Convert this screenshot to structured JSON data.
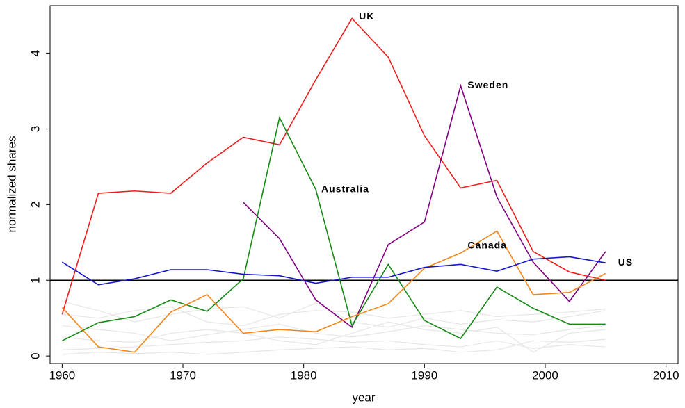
{
  "chart_data": {
    "type": "line",
    "x": [
      1960,
      1963,
      1966,
      1969,
      1972,
      1975,
      1978,
      1981,
      1984,
      1987,
      1990,
      1993,
      1996,
      1999,
      2002,
      2005
    ],
    "series": [
      {
        "color": "#e6e6e6",
        "values": [
          0.72,
          0.6,
          0.45,
          0.55,
          0.62,
          0.65,
          0.5,
          0.7,
          0.45,
          0.38,
          0.5,
          0.42,
          0.48,
          0.45,
          0.52,
          0.6
        ]
      },
      {
        "color": "#e6e6e6",
        "values": [
          0.4,
          0.35,
          0.3,
          0.2,
          0.28,
          0.35,
          0.42,
          0.3,
          0.25,
          0.32,
          0.4,
          0.35,
          0.3,
          0.28,
          0.35,
          0.4
        ]
      },
      {
        "color": "#e6e6e6",
        "values": [
          0.08,
          0.1,
          0.12,
          0.15,
          0.18,
          0.2,
          0.25,
          0.22,
          0.18,
          0.2,
          0.15,
          0.12,
          0.2,
          0.1,
          0.15,
          0.12
        ]
      },
      {
        "color": "#e6e6e6",
        "values": [
          0.55,
          0.5,
          0.6,
          0.65,
          0.45,
          0.4,
          0.55,
          0.6,
          0.58,
          0.5,
          0.55,
          0.6,
          0.52,
          0.55,
          0.58,
          0.62
        ]
      },
      {
        "color": "#e6e6e6",
        "values": [
          0.25,
          0.2,
          0.18,
          0.3,
          0.35,
          0.3,
          0.2,
          0.15,
          0.3,
          0.45,
          0.35,
          0.3,
          0.38,
          0.05,
          0.3,
          0.35
        ]
      },
      {
        "color": "#e6e6e6",
        "values": [
          0.02,
          0.05,
          0.03,
          0.05,
          0.02,
          0.05,
          0.08,
          0.1,
          0.12,
          0.08,
          0.1,
          0.05,
          0.08,
          0.2,
          0.18,
          0.22
        ]
      },
      {
        "name": "UK",
        "color": "#ee1c1c",
        "values": [
          0.55,
          2.15,
          2.18,
          2.15,
          2.55,
          2.89,
          2.79,
          3.65,
          4.46,
          3.95,
          2.91,
          2.22,
          2.32,
          1.38,
          1.11,
          1.0
        ]
      },
      {
        "name": "Sweden",
        "color": "#800080",
        "values": [
          null,
          null,
          null,
          null,
          null,
          2.03,
          1.55,
          0.74,
          0.38,
          1.47,
          1.77,
          3.57,
          2.1,
          1.24,
          0.72,
          1.38
        ]
      },
      {
        "name": "Australia",
        "color": "#158a15",
        "values": [
          0.2,
          0.44,
          0.52,
          0.74,
          0.59,
          1.02,
          3.15,
          2.2,
          0.4,
          1.21,
          0.47,
          0.23,
          0.91,
          0.63,
          0.42,
          0.42
        ]
      },
      {
        "name": "Canada",
        "color": "#f58518",
        "values": [
          0.64,
          0.12,
          0.05,
          0.58,
          0.81,
          0.3,
          0.35,
          0.32,
          0.52,
          0.69,
          1.16,
          1.36,
          1.65,
          0.81,
          0.84,
          1.09
        ]
      },
      {
        "name": "US",
        "color": "#1515d0",
        "values": [
          1.24,
          0.94,
          1.02,
          1.14,
          1.14,
          1.08,
          1.06,
          0.96,
          1.04,
          1.04,
          1.17,
          1.21,
          1.12,
          1.28,
          1.31,
          1.23
        ]
      }
    ],
    "hline": 1,
    "xlabel": "year",
    "ylabel": "normalized shares",
    "xlim": [
      1959,
      2011
    ],
    "xticks": [
      1960,
      1970,
      1980,
      1990,
      2000,
      2010
    ],
    "ylim": [
      -0.1,
      4.63
    ],
    "yticks": [
      0,
      1,
      2,
      3,
      4
    ],
    "grid": false
  }
}
